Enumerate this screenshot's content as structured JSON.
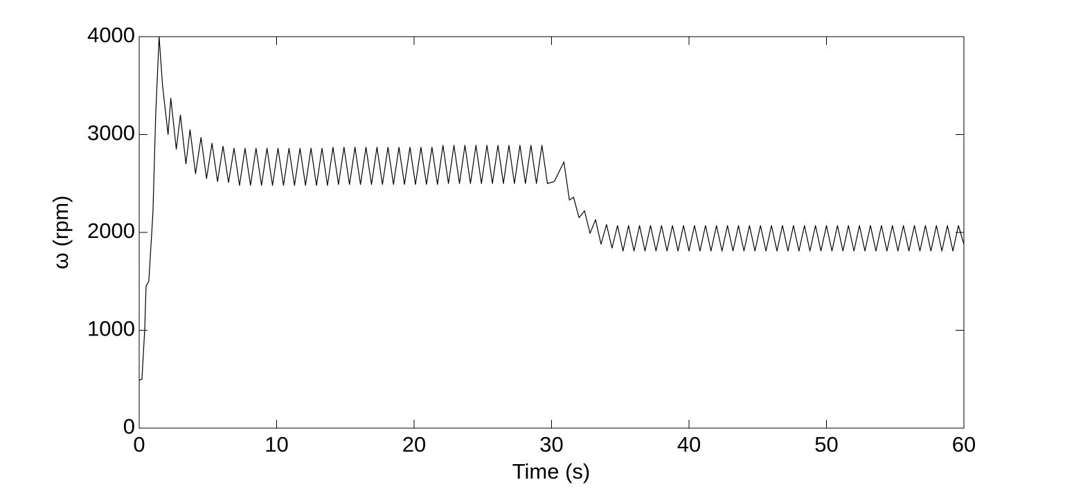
{
  "chart_data": {
    "type": "line",
    "xlabel": "Time (s)",
    "ylabel": "ω (rpm)",
    "x": [
      0,
      0.2,
      0.4,
      0.5,
      0.7,
      1.0,
      1.2,
      1.45,
      1.7,
      2.1,
      2.3,
      2.7,
      3.0,
      3.4,
      3.7,
      4.1,
      4.5,
      4.9,
      5.3,
      5.7,
      6.1,
      6.5,
      6.9,
      7.3,
      7.7,
      8.1,
      8.5,
      8.9,
      9.3,
      9.7,
      10.1,
      10.5,
      10.9,
      11.3,
      11.7,
      12.1,
      12.5,
      12.9,
      13.3,
      13.7,
      14.1,
      14.5,
      14.9,
      15.3,
      15.7,
      16.1,
      16.5,
      16.9,
      17.3,
      17.7,
      18.1,
      18.5,
      18.9,
      19.3,
      19.7,
      20.1,
      20.5,
      20.9,
      21.3,
      21.7,
      22.1,
      22.5,
      22.9,
      23.3,
      23.7,
      24.1,
      24.5,
      24.9,
      25.3,
      25.7,
      26.1,
      26.5,
      26.9,
      27.3,
      27.7,
      28.1,
      28.5,
      28.9,
      29.3,
      29.7,
      30.2,
      30.9,
      31.3,
      31.6,
      32.0,
      32.4,
      32.8,
      33.2,
      33.6,
      34.0,
      34.4,
      34.8,
      35.2,
      35.6,
      36.0,
      36.4,
      36.8,
      37.2,
      37.6,
      38.0,
      38.4,
      38.8,
      39.2,
      39.6,
      40.0,
      40.4,
      40.8,
      41.2,
      41.6,
      42.0,
      42.4,
      42.8,
      43.2,
      43.6,
      44.0,
      44.4,
      44.8,
      45.2,
      45.6,
      46.0,
      46.4,
      46.8,
      47.2,
      47.6,
      48.0,
      48.4,
      48.8,
      49.2,
      49.6,
      50.0,
      50.4,
      50.8,
      51.2,
      51.6,
      52.0,
      52.4,
      52.8,
      53.2,
      53.6,
      54.0,
      54.4,
      54.8,
      55.2,
      55.6,
      56.0,
      56.4,
      56.8,
      57.2,
      57.6,
      58.0,
      58.4,
      58.8,
      59.2,
      59.6,
      60.0
    ],
    "series": [
      {
        "color": "#000000",
        "values": [
          490,
          500,
          1000,
          1450,
          1500,
          2200,
          3200,
          4000,
          3500,
          3000,
          3370,
          2850,
          3200,
          2700,
          3050,
          2600,
          2970,
          2550,
          2910,
          2520,
          2880,
          2510,
          2860,
          2480,
          2860,
          2480,
          2860,
          2480,
          2860,
          2480,
          2860,
          2480,
          2860,
          2480,
          2860,
          2480,
          2860,
          2480,
          2860,
          2480,
          2870,
          2490,
          2870,
          2490,
          2870,
          2490,
          2870,
          2490,
          2870,
          2490,
          2870,
          2490,
          2870,
          2490,
          2870,
          2490,
          2870,
          2490,
          2870,
          2490,
          2890,
          2500,
          2890,
          2500,
          2890,
          2500,
          2890,
          2500,
          2890,
          2500,
          2890,
          2500,
          2890,
          2500,
          2890,
          2500,
          2890,
          2500,
          2890,
          2500,
          2520,
          2720,
          2330,
          2360,
          2150,
          2220,
          1990,
          2130,
          1880,
          2080,
          1840,
          2070,
          1810,
          2070,
          1810,
          2070,
          1810,
          2070,
          1810,
          2070,
          1810,
          2070,
          1810,
          2070,
          1810,
          2070,
          1810,
          2070,
          1810,
          2070,
          1810,
          2070,
          1810,
          2070,
          1810,
          2070,
          1810,
          2070,
          1810,
          2070,
          1810,
          2070,
          1810,
          2070,
          1810,
          2070,
          1810,
          2070,
          1810,
          2070,
          1810,
          2070,
          1810,
          2070,
          1810,
          2070,
          1810,
          2070,
          1810,
          2070,
          1810,
          2070,
          1810,
          2070,
          1810,
          2070,
          1810,
          2070,
          1810,
          2070,
          1810,
          2070,
          1810,
          2070,
          1880
        ]
      }
    ],
    "xlim": [
      0,
      60
    ],
    "xticks": [
      0,
      10,
      20,
      30,
      40,
      50,
      60
    ],
    "ylim": [
      0,
      4000
    ],
    "yticks": [
      0,
      1000,
      2000,
      3000,
      4000
    ],
    "grid": false
  }
}
